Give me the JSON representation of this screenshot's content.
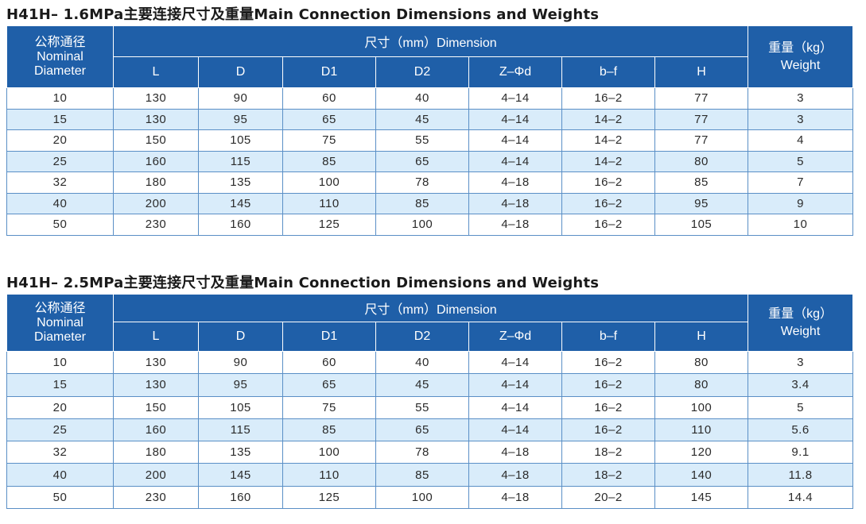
{
  "colors": {
    "header_bg": "#1f5fa8",
    "stripe_bg": "#d9ecfa",
    "border": "#5a8fc6"
  },
  "tables": [
    {
      "title": "H41H– 1.6MPa主要连接尺寸及重量Main Connection Dimensions and Weights",
      "header": {
        "nominal_cn": "公称通径",
        "nominal_en_1": "Nominal",
        "nominal_en_2": "Diameter",
        "dimension": "尺寸（mm）Dimension",
        "weight_cn": "重量（kg）",
        "weight_en": "Weight",
        "columns": [
          "L",
          "D",
          "D1",
          "D2",
          "Z–Φd",
          "b–f",
          "H"
        ]
      },
      "rows": [
        [
          "10",
          "130",
          "90",
          "60",
          "40",
          "4–14",
          "16–2",
          "77",
          "3"
        ],
        [
          "15",
          "130",
          "95",
          "65",
          "45",
          "4–14",
          "14–2",
          "77",
          "3"
        ],
        [
          "20",
          "150",
          "105",
          "75",
          "55",
          "4–14",
          "14–2",
          "77",
          "4"
        ],
        [
          "25",
          "160",
          "115",
          "85",
          "65",
          "4–14",
          "14–2",
          "80",
          "5"
        ],
        [
          "32",
          "180",
          "135",
          "100",
          "78",
          "4–18",
          "16–2",
          "85",
          "7"
        ],
        [
          "40",
          "200",
          "145",
          "110",
          "85",
          "4–18",
          "16–2",
          "95",
          "9"
        ],
        [
          "50",
          "230",
          "160",
          "125",
          "100",
          "4–18",
          "16–2",
          "105",
          "10"
        ]
      ]
    },
    {
      "title": "H41H– 2.5MPa主要连接尺寸及重量Main Connection Dimensions and Weights",
      "header": {
        "nominal_cn": "公称通径",
        "nominal_en_1": "Nominal",
        "nominal_en_2": "Diameter",
        "dimension": "尺寸（mm）Dimension",
        "weight_cn": "重量（kg）",
        "weight_en": "Weight",
        "columns": [
          "L",
          "D",
          "D1",
          "D2",
          "Z–Φd",
          "b–f",
          "H"
        ]
      },
      "rows": [
        [
          "10",
          "130",
          "90",
          "60",
          "40",
          "4–14",
          "16–2",
          "80",
          "3"
        ],
        [
          "15",
          "130",
          "95",
          "65",
          "45",
          "4–14",
          "16–2",
          "80",
          "3.4"
        ],
        [
          "20",
          "150",
          "105",
          "75",
          "55",
          "4–14",
          "16–2",
          "100",
          "5"
        ],
        [
          "25",
          "160",
          "115",
          "85",
          "65",
          "4–14",
          "16–2",
          "110",
          "5.6"
        ],
        [
          "32",
          "180",
          "135",
          "100",
          "78",
          "4–18",
          "18–2",
          "120",
          "9.1"
        ],
        [
          "40",
          "200",
          "145",
          "110",
          "85",
          "4–18",
          "18–2",
          "140",
          "11.8"
        ],
        [
          "50",
          "230",
          "160",
          "125",
          "100",
          "4–18",
          "20–2",
          "145",
          "14.4"
        ]
      ]
    }
  ]
}
